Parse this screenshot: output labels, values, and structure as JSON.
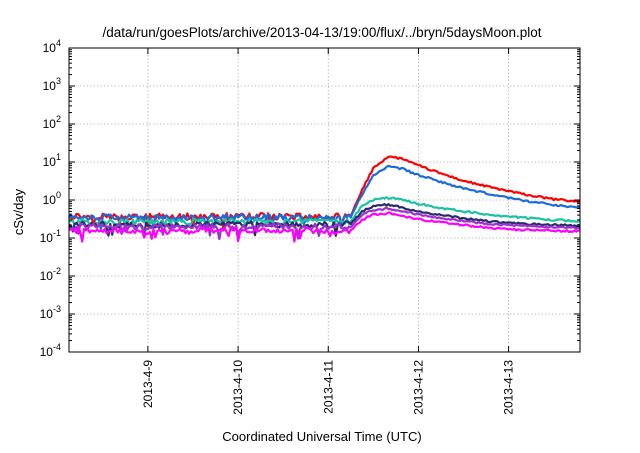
{
  "chart_data": {
    "type": "line",
    "title": "/data/run/goesPlots/archive/2013-04-13/19:00/flux/../bryn/5daysMoon.plot",
    "xlabel": "Coordinated Universal Time (UTC)",
    "ylabel": "cSv/day",
    "y_scale": "log",
    "ylim": [
      0.0001,
      10000
    ],
    "y_ticks": [
      {
        "value": 0.0001,
        "base": "10",
        "exp": "-4"
      },
      {
        "value": 0.001,
        "base": "10",
        "exp": "-3"
      },
      {
        "value": 0.01,
        "base": "10",
        "exp": "-2"
      },
      {
        "value": 0.1,
        "base": "10",
        "exp": "-1"
      },
      {
        "value": 1,
        "base": "10",
        "exp": "0"
      },
      {
        "value": 10,
        "base": "10",
        "exp": "1"
      },
      {
        "value": 100,
        "base": "10",
        "exp": "2"
      },
      {
        "value": 1000,
        "base": "10",
        "exp": "3"
      },
      {
        "value": 10000,
        "base": "10",
        "exp": "4"
      }
    ],
    "x_range": [
      "2013-04-08 03:00",
      "2013-04-13 19:00"
    ],
    "x_ticks": [
      "2013-4-9",
      "2013-4-10",
      "2013-4-11",
      "2013-4-12",
      "2013-4-13"
    ],
    "grid": true,
    "legend": "none",
    "series": [
      {
        "color": "#ff0000",
        "points": [
          [
            "2013-04-08 03:00",
            0.38
          ],
          [
            "2013-04-09 00:00",
            0.36
          ],
          [
            "2013-04-10 00:00",
            0.38
          ],
          [
            "2013-04-11 00:00",
            0.36
          ],
          [
            "2013-04-11 06:00",
            0.38
          ],
          [
            "2013-04-11 09:00",
            1.8
          ],
          [
            "2013-04-11 12:00",
            7
          ],
          [
            "2013-04-11 16:00",
            14
          ],
          [
            "2013-04-11 20:00",
            12
          ],
          [
            "2013-04-12 00:00",
            8
          ],
          [
            "2013-04-12 06:00",
            5
          ],
          [
            "2013-04-12 12:00",
            3.2
          ],
          [
            "2013-04-12 18:00",
            2.3
          ],
          [
            "2013-04-13 00:00",
            1.7
          ],
          [
            "2013-04-13 06:00",
            1.3
          ],
          [
            "2013-04-13 12:00",
            1.05
          ],
          [
            "2013-04-13 19:00",
            0.9
          ]
        ]
      },
      {
        "color": "#1a6bdc",
        "points": [
          [
            "2013-04-08 03:00",
            0.36
          ],
          [
            "2013-04-09 00:00",
            0.34
          ],
          [
            "2013-04-10 00:00",
            0.36
          ],
          [
            "2013-04-11 00:00",
            0.34
          ],
          [
            "2013-04-11 06:00",
            0.36
          ],
          [
            "2013-04-11 09:00",
            1.4
          ],
          [
            "2013-04-11 12:00",
            4.5
          ],
          [
            "2013-04-11 16:00",
            7.5
          ],
          [
            "2013-04-11 20:00",
            6.5
          ],
          [
            "2013-04-12 00:00",
            4.5
          ],
          [
            "2013-04-12 06:00",
            3
          ],
          [
            "2013-04-12 12:00",
            2
          ],
          [
            "2013-04-12 18:00",
            1.5
          ],
          [
            "2013-04-13 00:00",
            1.15
          ],
          [
            "2013-04-13 06:00",
            0.9
          ],
          [
            "2013-04-13 12:00",
            0.75
          ],
          [
            "2013-04-13 19:00",
            0.62
          ]
        ]
      },
      {
        "color": "#19c3a0",
        "points": [
          [
            "2013-04-08 03:00",
            0.27
          ],
          [
            "2013-04-09 00:00",
            0.26
          ],
          [
            "2013-04-10 00:00",
            0.27
          ],
          [
            "2013-04-11 00:00",
            0.26
          ],
          [
            "2013-04-11 06:00",
            0.27
          ],
          [
            "2013-04-11 09:00",
            0.7
          ],
          [
            "2013-04-11 12:00",
            1.0
          ],
          [
            "2013-04-11 16:00",
            1.15
          ],
          [
            "2013-04-11 20:00",
            1.0
          ],
          [
            "2013-04-12 00:00",
            0.8
          ],
          [
            "2013-04-12 06:00",
            0.62
          ],
          [
            "2013-04-12 12:00",
            0.5
          ],
          [
            "2013-04-12 18:00",
            0.42
          ],
          [
            "2013-04-13 00:00",
            0.37
          ],
          [
            "2013-04-13 06:00",
            0.33
          ],
          [
            "2013-04-13 12:00",
            0.3
          ],
          [
            "2013-04-13 19:00",
            0.28
          ]
        ]
      },
      {
        "color": "#2a2a6a",
        "points": [
          [
            "2013-04-08 03:00",
            0.23
          ],
          [
            "2013-04-09 00:00",
            0.22
          ],
          [
            "2013-04-10 00:00",
            0.23
          ],
          [
            "2013-04-11 00:00",
            0.22
          ],
          [
            "2013-04-11 06:00",
            0.23
          ],
          [
            "2013-04-11 09:00",
            0.5
          ],
          [
            "2013-04-11 12:00",
            0.7
          ],
          [
            "2013-04-11 16:00",
            0.75
          ],
          [
            "2013-04-11 20:00",
            0.62
          ],
          [
            "2013-04-12 00:00",
            0.5
          ],
          [
            "2013-04-12 06:00",
            0.4
          ],
          [
            "2013-04-12 12:00",
            0.33
          ],
          [
            "2013-04-12 18:00",
            0.28
          ],
          [
            "2013-04-13 00:00",
            0.25
          ],
          [
            "2013-04-13 06:00",
            0.23
          ],
          [
            "2013-04-13 12:00",
            0.22
          ],
          [
            "2013-04-13 19:00",
            0.21
          ]
        ]
      },
      {
        "color": "#9933cc",
        "points": [
          [
            "2013-04-08 03:00",
            0.2
          ],
          [
            "2013-04-09 00:00",
            0.2
          ],
          [
            "2013-04-10 00:00",
            0.2
          ],
          [
            "2013-04-11 00:00",
            0.2
          ],
          [
            "2013-04-11 06:00",
            0.2
          ],
          [
            "2013-04-11 09:00",
            0.42
          ],
          [
            "2013-04-11 12:00",
            0.55
          ],
          [
            "2013-04-11 16:00",
            0.6
          ],
          [
            "2013-04-11 20:00",
            0.5
          ],
          [
            "2013-04-12 00:00",
            0.42
          ],
          [
            "2013-04-12 06:00",
            0.34
          ],
          [
            "2013-04-12 12:00",
            0.28
          ],
          [
            "2013-04-12 18:00",
            0.24
          ],
          [
            "2013-04-13 00:00",
            0.22
          ],
          [
            "2013-04-13 06:00",
            0.2
          ],
          [
            "2013-04-13 12:00",
            0.19
          ],
          [
            "2013-04-13 19:00",
            0.18
          ]
        ]
      },
      {
        "color": "#ff00ff",
        "points": [
          [
            "2013-04-08 03:00",
            0.16
          ],
          [
            "2013-04-09 00:00",
            0.15
          ],
          [
            "2013-04-10 00:00",
            0.16
          ],
          [
            "2013-04-11 00:00",
            0.15
          ],
          [
            "2013-04-11 06:00",
            0.16
          ],
          [
            "2013-04-11 09:00",
            0.3
          ],
          [
            "2013-04-11 12:00",
            0.42
          ],
          [
            "2013-04-11 16:00",
            0.45
          ],
          [
            "2013-04-11 20:00",
            0.38
          ],
          [
            "2013-04-12 00:00",
            0.31
          ],
          [
            "2013-04-12 06:00",
            0.26
          ],
          [
            "2013-04-12 12:00",
            0.22
          ],
          [
            "2013-04-12 18:00",
            0.19
          ],
          [
            "2013-04-13 00:00",
            0.17
          ],
          [
            "2013-04-13 06:00",
            0.16
          ],
          [
            "2013-04-13 12:00",
            0.155
          ],
          [
            "2013-04-13 19:00",
            0.15
          ]
        ]
      }
    ]
  }
}
